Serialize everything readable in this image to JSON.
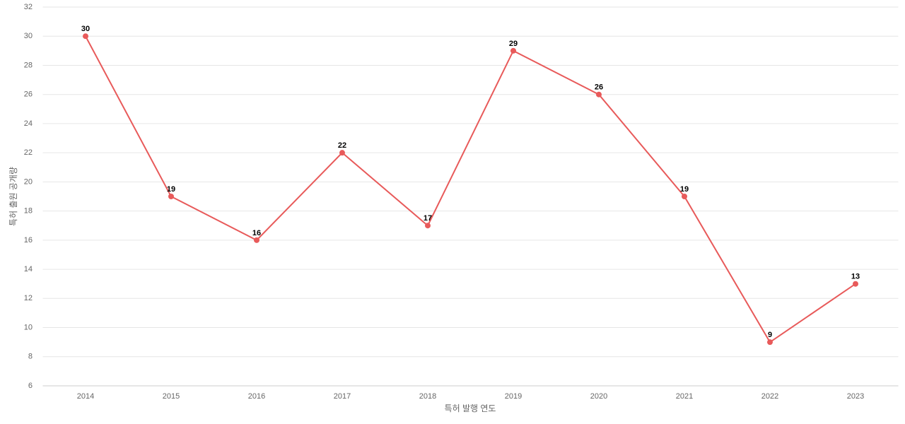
{
  "chart_data": {
    "type": "line",
    "x_label": "특허 발행 연도",
    "y_label": "특허 출원 공개량",
    "categories": [
      "2014",
      "2015",
      "2016",
      "2017",
      "2018",
      "2019",
      "2020",
      "2021",
      "2022",
      "2023"
    ],
    "series": [
      {
        "name": "특허 출원 공개량",
        "color": "#e85a5a",
        "values": [
          30,
          19,
          16,
          22,
          17,
          29,
          26,
          19,
          9,
          13
        ]
      }
    ],
    "ylim": [
      6,
      32
    ],
    "yticks": [
      6,
      8,
      10,
      12,
      14,
      16,
      18,
      20,
      22,
      24,
      26,
      28,
      30,
      32
    ],
    "grid": true,
    "data_labels": true
  }
}
